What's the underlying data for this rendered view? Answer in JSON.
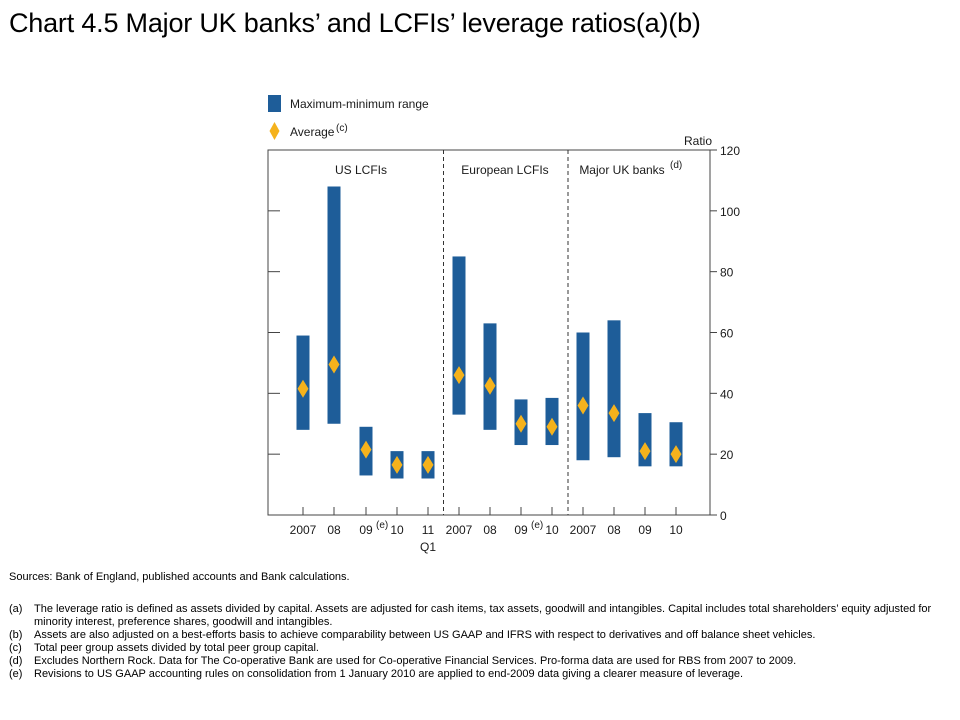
{
  "title": "Chart 4.5  Major UK banks’ and LCFIs’ leverage ratios(a)(b)",
  "chart_data": {
    "type": "range-with-average",
    "ylabel": "Ratio",
    "ylim": [
      0,
      120
    ],
    "yticks": [
      0,
      20,
      40,
      60,
      80,
      100,
      120
    ],
    "legend": {
      "range_label": "Maximum-minimum range",
      "average_label": "Average",
      "average_note": "(c)"
    },
    "colors": {
      "bar": "#1e5d99",
      "average": "#f5b21c",
      "axis": "#444444"
    },
    "groups": [
      {
        "name": "US LCFIs",
        "note": "",
        "categories": [
          {
            "label": "2007",
            "sup": "",
            "sub": "",
            "min": 28,
            "max": 59,
            "avg": 41.5
          },
          {
            "label": "08",
            "sup": "",
            "sub": "",
            "min": 30,
            "max": 108,
            "avg": 49.5
          },
          {
            "label": "09",
            "sup": "(e)",
            "sub": "",
            "min": 13,
            "max": 29,
            "avg": 21.5
          },
          {
            "label": "10",
            "sup": "",
            "sub": "",
            "min": 12,
            "max": 21,
            "avg": 16.5
          },
          {
            "label": "11",
            "sup": "",
            "sub": "Q1",
            "min": 12,
            "max": 21,
            "avg": 16.5
          }
        ]
      },
      {
        "name": "European LCFIs",
        "note": "",
        "categories": [
          {
            "label": "2007",
            "sup": "",
            "sub": "",
            "min": 33,
            "max": 85,
            "avg": 46
          },
          {
            "label": "08",
            "sup": "",
            "sub": "",
            "min": 28,
            "max": 63,
            "avg": 42.5
          },
          {
            "label": "09",
            "sup": "(e)",
            "sub": "",
            "min": 23,
            "max": 38,
            "avg": 30
          },
          {
            "label": "10",
            "sup": "",
            "sub": "",
            "min": 23,
            "max": 38.5,
            "avg": 29
          }
        ]
      },
      {
        "name": "Major UK banks",
        "note": "(d)",
        "categories": [
          {
            "label": "2007",
            "sup": "",
            "sub": "",
            "min": 18,
            "max": 60,
            "avg": 36
          },
          {
            "label": "08",
            "sup": "",
            "sub": "",
            "min": 19,
            "max": 64,
            "avg": 33.5
          },
          {
            "label": "09",
            "sup": "",
            "sub": "",
            "min": 16,
            "max": 33.5,
            "avg": 21
          },
          {
            "label": "10",
            "sup": "",
            "sub": "",
            "min": 16,
            "max": 30.5,
            "avg": 20
          }
        ]
      }
    ]
  },
  "sources": "Sources:  Bank of England, published accounts and Bank calculations.",
  "footnotes": [
    {
      "marker": "(a)",
      "text": "The leverage ratio is defined as assets divided by capital.  Assets are adjusted for cash items, tax assets, goodwill and intangibles.  Capital includes total shareholders’ equity adjusted for minority interest, preference shares, goodwill and intangibles."
    },
    {
      "marker": "(b)",
      "text": "Assets are also adjusted on a best-efforts basis to achieve comparability between US GAAP and IFRS with respect to derivatives and off balance sheet vehicles."
    },
    {
      "marker": "(c)",
      "text": "Total peer group assets divided by total peer group capital."
    },
    {
      "marker": "(d)",
      "text": "Excludes Northern Rock.  Data for The Co-operative Bank are used for Co-operative Financial Services.  Pro-forma data are used for RBS from 2007 to 2009."
    },
    {
      "marker": "(e)",
      "text": "Revisions to US GAAP accounting rules on consolidation from 1 January 2010 are applied to end-2009 data giving a clearer measure of leverage."
    }
  ]
}
